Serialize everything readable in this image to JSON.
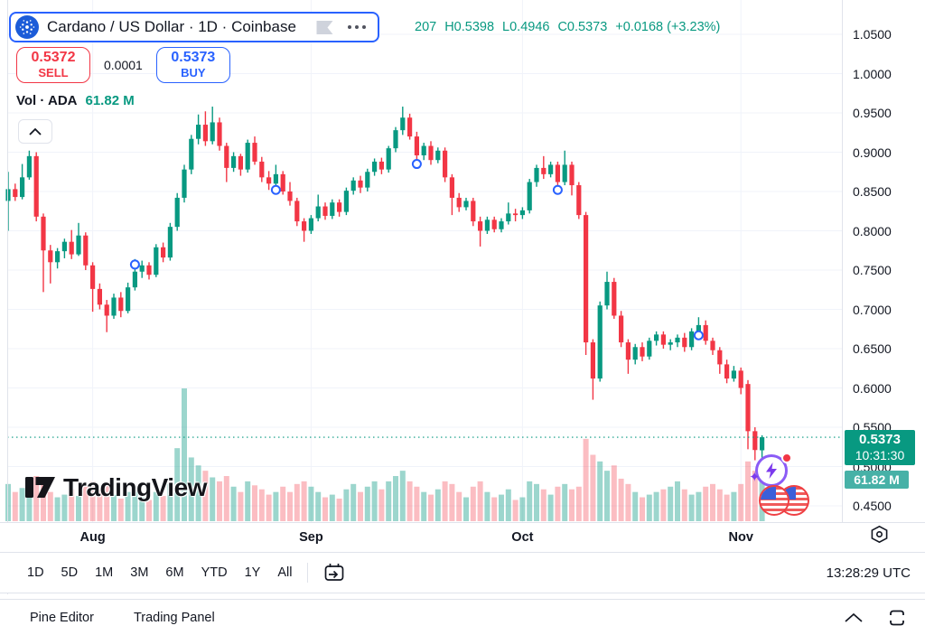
{
  "header": {
    "symbol_title": "Cardano / US Dollar · 1D · Coinbase",
    "ohlc_parts": [
      "207",
      "H0.5398",
      "L0.4946",
      "C0.5373",
      "+0.0168 (+3.23%)"
    ],
    "sell": {
      "price": "0.5372",
      "label": "SELL"
    },
    "spread": "0.0001",
    "buy": {
      "price": "0.5373",
      "label": "BUY"
    },
    "volume_legend": {
      "label": "Vol · ADA",
      "value": "61.82 M"
    }
  },
  "watermark_text": "TradingView",
  "chart_data": {
    "type": "candlestick",
    "title": "Cardano / US Dollar · 1D · Coinbase",
    "x_labels": [
      "Aug",
      "Sep",
      "Oct",
      "Nov"
    ],
    "x_label_indices": [
      12,
      43,
      73,
      104
    ],
    "price_ticks": [
      "1.0500",
      "1.0000",
      "0.9500",
      "0.9000",
      "0.8500",
      "0.8000",
      "0.7500",
      "0.7000",
      "0.6500",
      "0.6000",
      "0.5500",
      "0.5000",
      "0.4500"
    ],
    "price_range": [
      0.45,
      1.05
    ],
    "grid": true,
    "last_price": "0.5373",
    "last_price_value": 0.5373,
    "countdown": "10:31:30",
    "volume_axis_label": "61.82 M",
    "colors": {
      "up": "#089981",
      "down": "#f23645",
      "vol_up": "rgba(8,153,129,0.40)",
      "vol_down": "rgba(242,54,69,0.33)",
      "grid": "#f0f3fa",
      "price_line": "#089981",
      "price_label_bg": "#089981",
      "volume_label_bg": "#47b1a7",
      "accent_blue": "#2962ff"
    },
    "candles": [
      [
        0.838,
        0.875,
        0.8,
        0.853
      ],
      [
        0.853,
        0.86,
        0.838,
        0.843
      ],
      [
        0.843,
        0.885,
        0.84,
        0.868
      ],
      [
        0.868,
        0.902,
        0.865,
        0.895
      ],
      [
        0.895,
        0.9,
        0.812,
        0.818
      ],
      [
        0.818,
        0.822,
        0.722,
        0.775
      ],
      [
        0.775,
        0.782,
        0.733,
        0.76
      ],
      [
        0.76,
        0.778,
        0.752,
        0.774
      ],
      [
        0.774,
        0.79,
        0.765,
        0.786
      ],
      [
        0.786,
        0.801,
        0.764,
        0.77
      ],
      [
        0.77,
        0.81,
        0.768,
        0.794
      ],
      [
        0.794,
        0.798,
        0.75,
        0.756
      ],
      [
        0.756,
        0.76,
        0.697,
        0.726
      ],
      [
        0.726,
        0.733,
        0.7,
        0.706
      ],
      [
        0.706,
        0.712,
        0.671,
        0.692
      ],
      [
        0.692,
        0.72,
        0.688,
        0.715
      ],
      [
        0.715,
        0.722,
        0.69,
        0.698
      ],
      [
        0.698,
        0.734,
        0.695,
        0.728
      ],
      [
        0.728,
        0.764,
        0.724,
        0.748
      ],
      [
        0.748,
        0.762,
        0.74,
        0.756
      ],
      [
        0.756,
        0.76,
        0.738,
        0.744
      ],
      [
        0.744,
        0.783,
        0.741,
        0.779
      ],
      [
        0.779,
        0.785,
        0.76,
        0.766
      ],
      [
        0.766,
        0.81,
        0.762,
        0.805
      ],
      [
        0.805,
        0.848,
        0.8,
        0.842
      ],
      [
        0.842,
        0.884,
        0.836,
        0.878
      ],
      [
        0.878,
        0.922,
        0.872,
        0.917
      ],
      [
        0.917,
        0.948,
        0.91,
        0.935
      ],
      [
        0.935,
        0.952,
        0.908,
        0.914
      ],
      [
        0.914,
        0.958,
        0.91,
        0.938
      ],
      [
        0.938,
        0.944,
        0.902,
        0.908
      ],
      [
        0.908,
        0.912,
        0.862,
        0.88
      ],
      [
        0.88,
        0.9,
        0.875,
        0.895
      ],
      [
        0.895,
        0.898,
        0.87,
        0.878
      ],
      [
        0.878,
        0.916,
        0.874,
        0.912
      ],
      [
        0.912,
        0.92,
        0.884,
        0.888
      ],
      [
        0.888,
        0.894,
        0.862,
        0.868
      ],
      [
        0.868,
        0.876,
        0.852,
        0.86
      ],
      [
        0.86,
        0.884,
        0.856,
        0.872
      ],
      [
        0.872,
        0.876,
        0.846,
        0.85
      ],
      [
        0.85,
        0.862,
        0.832,
        0.838
      ],
      [
        0.838,
        0.842,
        0.806,
        0.812
      ],
      [
        0.812,
        0.816,
        0.786,
        0.8
      ],
      [
        0.8,
        0.82,
        0.796,
        0.816
      ],
      [
        0.816,
        0.846,
        0.812,
        0.831
      ],
      [
        0.831,
        0.836,
        0.814,
        0.819
      ],
      [
        0.819,
        0.84,
        0.815,
        0.836
      ],
      [
        0.836,
        0.84,
        0.818,
        0.824
      ],
      [
        0.824,
        0.855,
        0.82,
        0.851
      ],
      [
        0.851,
        0.868,
        0.846,
        0.864
      ],
      [
        0.864,
        0.87,
        0.848,
        0.855
      ],
      [
        0.855,
        0.879,
        0.85,
        0.875
      ],
      [
        0.875,
        0.892,
        0.87,
        0.888
      ],
      [
        0.888,
        0.893,
        0.872,
        0.878
      ],
      [
        0.878,
        0.908,
        0.874,
        0.905
      ],
      [
        0.905,
        0.932,
        0.9,
        0.928
      ],
      [
        0.928,
        0.958,
        0.922,
        0.944
      ],
      [
        0.944,
        0.949,
        0.916,
        0.92
      ],
      [
        0.92,
        0.926,
        0.89,
        0.896
      ],
      [
        0.896,
        0.912,
        0.89,
        0.908
      ],
      [
        0.908,
        0.914,
        0.884,
        0.89
      ],
      [
        0.89,
        0.906,
        0.886,
        0.902
      ],
      [
        0.902,
        0.906,
        0.862,
        0.868
      ],
      [
        0.868,
        0.872,
        0.82,
        0.842
      ],
      [
        0.842,
        0.848,
        0.824,
        0.83
      ],
      [
        0.83,
        0.842,
        0.826,
        0.838
      ],
      [
        0.838,
        0.842,
        0.806,
        0.812
      ],
      [
        0.812,
        0.818,
        0.78,
        0.8
      ],
      [
        0.8,
        0.818,
        0.796,
        0.814
      ],
      [
        0.814,
        0.818,
        0.798,
        0.802
      ],
      [
        0.802,
        0.816,
        0.798,
        0.812
      ],
      [
        0.812,
        0.836,
        0.808,
        0.822
      ],
      [
        0.822,
        0.828,
        0.812,
        0.82
      ],
      [
        0.82,
        0.83,
        0.815,
        0.826
      ],
      [
        0.826,
        0.866,
        0.822,
        0.862
      ],
      [
        0.862,
        0.884,
        0.856,
        0.88
      ],
      [
        0.88,
        0.895,
        0.866,
        0.872
      ],
      [
        0.872,
        0.888,
        0.868,
        0.884
      ],
      [
        0.884,
        0.888,
        0.856,
        0.862
      ],
      [
        0.862,
        0.902,
        0.858,
        0.884
      ],
      [
        0.884,
        0.888,
        0.845,
        0.858
      ],
      [
        0.858,
        0.862,
        0.815,
        0.82
      ],
      [
        0.82,
        0.824,
        0.642,
        0.658
      ],
      [
        0.658,
        0.662,
        0.585,
        0.612
      ],
      [
        0.612,
        0.71,
        0.608,
        0.705
      ],
      [
        0.705,
        0.748,
        0.7,
        0.735
      ],
      [
        0.735,
        0.74,
        0.688,
        0.692
      ],
      [
        0.692,
        0.698,
        0.652,
        0.658
      ],
      [
        0.658,
        0.662,
        0.618,
        0.636
      ],
      [
        0.636,
        0.656,
        0.63,
        0.652
      ],
      [
        0.652,
        0.658,
        0.634,
        0.64
      ],
      [
        0.64,
        0.664,
        0.636,
        0.66
      ],
      [
        0.66,
        0.672,
        0.654,
        0.668
      ],
      [
        0.668,
        0.672,
        0.65,
        0.655
      ],
      [
        0.655,
        0.662,
        0.648,
        0.658
      ],
      [
        0.658,
        0.668,
        0.652,
        0.664
      ],
      [
        0.664,
        0.67,
        0.646,
        0.652
      ],
      [
        0.652,
        0.676,
        0.648,
        0.672
      ],
      [
        0.672,
        0.69,
        0.668,
        0.68
      ],
      [
        0.68,
        0.686,
        0.655,
        0.66
      ],
      [
        0.66,
        0.664,
        0.642,
        0.648
      ],
      [
        0.648,
        0.652,
        0.618,
        0.63
      ],
      [
        0.63,
        0.636,
        0.606,
        0.612
      ],
      [
        0.612,
        0.628,
        0.608,
        0.622
      ],
      [
        0.622,
        0.626,
        0.592,
        0.6
      ],
      [
        0.605,
        0.61,
        0.522,
        0.545
      ],
      [
        0.545,
        0.55,
        0.508,
        0.521
      ],
      [
        0.5207,
        0.5398,
        0.4946,
        0.5373
      ]
    ],
    "volumes": [
      0.28,
      0.22,
      0.25,
      0.3,
      0.34,
      0.3,
      0.22,
      0.18,
      0.2,
      0.24,
      0.19,
      0.26,
      0.3,
      0.24,
      0.28,
      0.2,
      0.17,
      0.22,
      0.26,
      0.18,
      0.16,
      0.22,
      0.19,
      0.28,
      0.55,
      1.0,
      0.48,
      0.42,
      0.38,
      0.33,
      0.3,
      0.34,
      0.26,
      0.22,
      0.3,
      0.27,
      0.24,
      0.2,
      0.22,
      0.26,
      0.22,
      0.28,
      0.3,
      0.26,
      0.22,
      0.18,
      0.2,
      0.17,
      0.24,
      0.28,
      0.22,
      0.26,
      0.3,
      0.24,
      0.3,
      0.34,
      0.38,
      0.3,
      0.26,
      0.22,
      0.2,
      0.24,
      0.3,
      0.28,
      0.22,
      0.18,
      0.26,
      0.3,
      0.22,
      0.18,
      0.2,
      0.24,
      0.16,
      0.18,
      0.3,
      0.28,
      0.24,
      0.2,
      0.26,
      0.28,
      0.24,
      0.26,
      0.62,
      0.5,
      0.45,
      0.38,
      0.42,
      0.32,
      0.28,
      0.22,
      0.18,
      0.2,
      0.22,
      0.24,
      0.26,
      0.3,
      0.24,
      0.2,
      0.22,
      0.26,
      0.28,
      0.24,
      0.2,
      0.22,
      0.28,
      0.45,
      0.38,
      0.42
    ],
    "markers": [
      {
        "index": 18,
        "price": 0.757
      },
      {
        "index": 38,
        "price": 0.852
      },
      {
        "index": 58,
        "price": 0.885
      },
      {
        "index": 78,
        "price": 0.852
      },
      {
        "index": 98,
        "price": 0.667
      }
    ]
  },
  "axis_toolbar": {
    "ranges": [
      "1D",
      "5D",
      "1M",
      "3M",
      "6M",
      "YTD",
      "1Y",
      "All"
    ],
    "utc_time": "13:28:29 UTC"
  },
  "footer": {
    "items": [
      "Pine Editor",
      "Trading Panel"
    ]
  }
}
